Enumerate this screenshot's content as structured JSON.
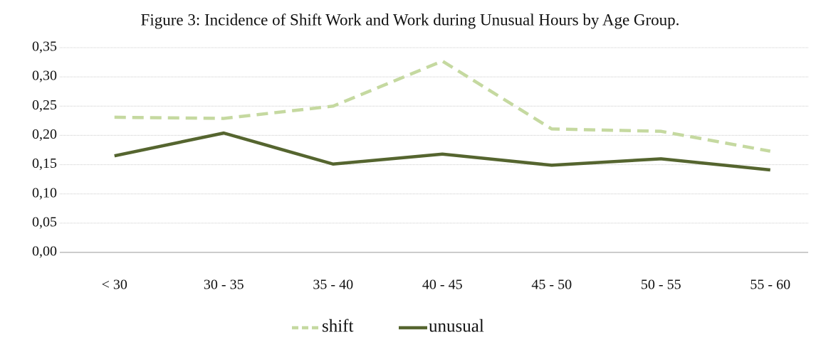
{
  "chart_data": {
    "type": "line",
    "title": "Figure 3: Incidence of Shift Work and Work during Unusual Hours by Age Group.",
    "categories": [
      "< 30",
      "30 - 35",
      "35 - 40",
      "40 - 45",
      "45 - 50",
      "50 - 55",
      "55 - 60"
    ],
    "series": [
      {
        "name": "shift",
        "color": "#c5d9a0",
        "dashed": true,
        "values": [
          0.231,
          0.229,
          0.25,
          0.327,
          0.211,
          0.207,
          0.173
        ]
      },
      {
        "name": "unusual",
        "color": "#55652f",
        "dashed": false,
        "values": [
          0.165,
          0.204,
          0.151,
          0.168,
          0.149,
          0.16,
          0.141
        ]
      }
    ],
    "ylim": [
      0,
      0.35
    ],
    "yticks": [
      {
        "value": 0,
        "label": "0,00"
      },
      {
        "value": 0.05,
        "label": "0,05"
      },
      {
        "value": 0.1,
        "label": "0,10"
      },
      {
        "value": 0.15,
        "label": "0,15"
      },
      {
        "value": 0.2,
        "label": "0,20"
      },
      {
        "value": 0.25,
        "label": "0,25"
      },
      {
        "value": 0.3,
        "label": "0,30"
      },
      {
        "value": 0.35,
        "label": "0,35"
      }
    ],
    "grid": true,
    "legend": "bottom"
  }
}
